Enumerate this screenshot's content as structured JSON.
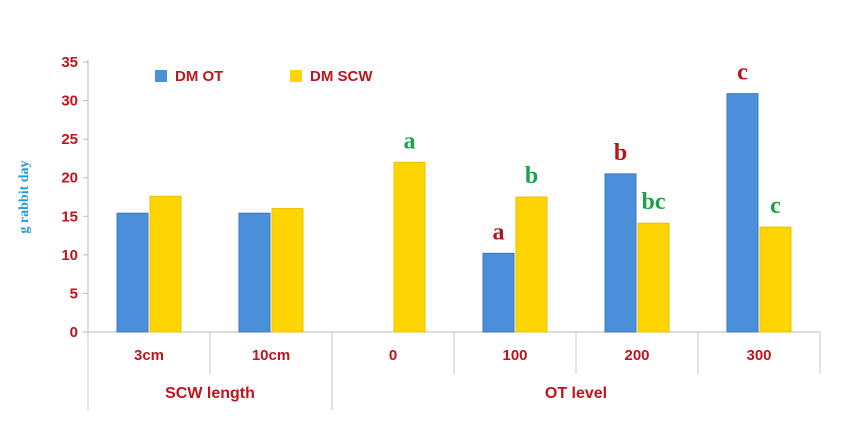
{
  "chart_data": {
    "type": "bar",
    "ylabel": "g rabbit day",
    "ylim": [
      0,
      35
    ],
    "yticks": [
      "0",
      "5",
      "10",
      "15",
      "20",
      "25",
      "30",
      "35"
    ],
    "categories": [
      "3cm",
      "10cm",
      "0",
      "100",
      "200",
      "300"
    ],
    "groups": [
      {
        "label": "SCW length",
        "categories": [
          "3cm",
          "10cm"
        ]
      },
      {
        "label": "OT level",
        "categories": [
          "0",
          "100",
          "200",
          "300"
        ]
      }
    ],
    "series": [
      {
        "name": "DM OT",
        "color": "#4a8fd9",
        "values": [
          15.4,
          15.4,
          null,
          10.2,
          20.5,
          30.9
        ]
      },
      {
        "name": "DM SCW",
        "color": "#ffd400",
        "values": [
          17.6,
          16.0,
          22.0,
          17.5,
          14.1,
          13.6
        ]
      }
    ],
    "annotations": [
      {
        "category": "0",
        "series": "DM SCW",
        "text": "a",
        "color": "#1aa34a"
      },
      {
        "category": "100",
        "series": "DM OT",
        "text": "a",
        "color": "#b01820"
      },
      {
        "category": "100",
        "series": "DM SCW",
        "text": "b",
        "color": "#1aa34a"
      },
      {
        "category": "200",
        "series": "DM OT",
        "text": "b",
        "color": "#b01820"
      },
      {
        "category": "200",
        "series": "DM SCW",
        "text": "bc",
        "color": "#1aa34a"
      },
      {
        "category": "300",
        "series": "DM OT",
        "text": "c",
        "color": "#b01820"
      },
      {
        "category": "300",
        "series": "DM SCW",
        "text": "c",
        "color": "#1aa34a"
      }
    ],
    "legend_position": "top-left",
    "grid": false
  }
}
